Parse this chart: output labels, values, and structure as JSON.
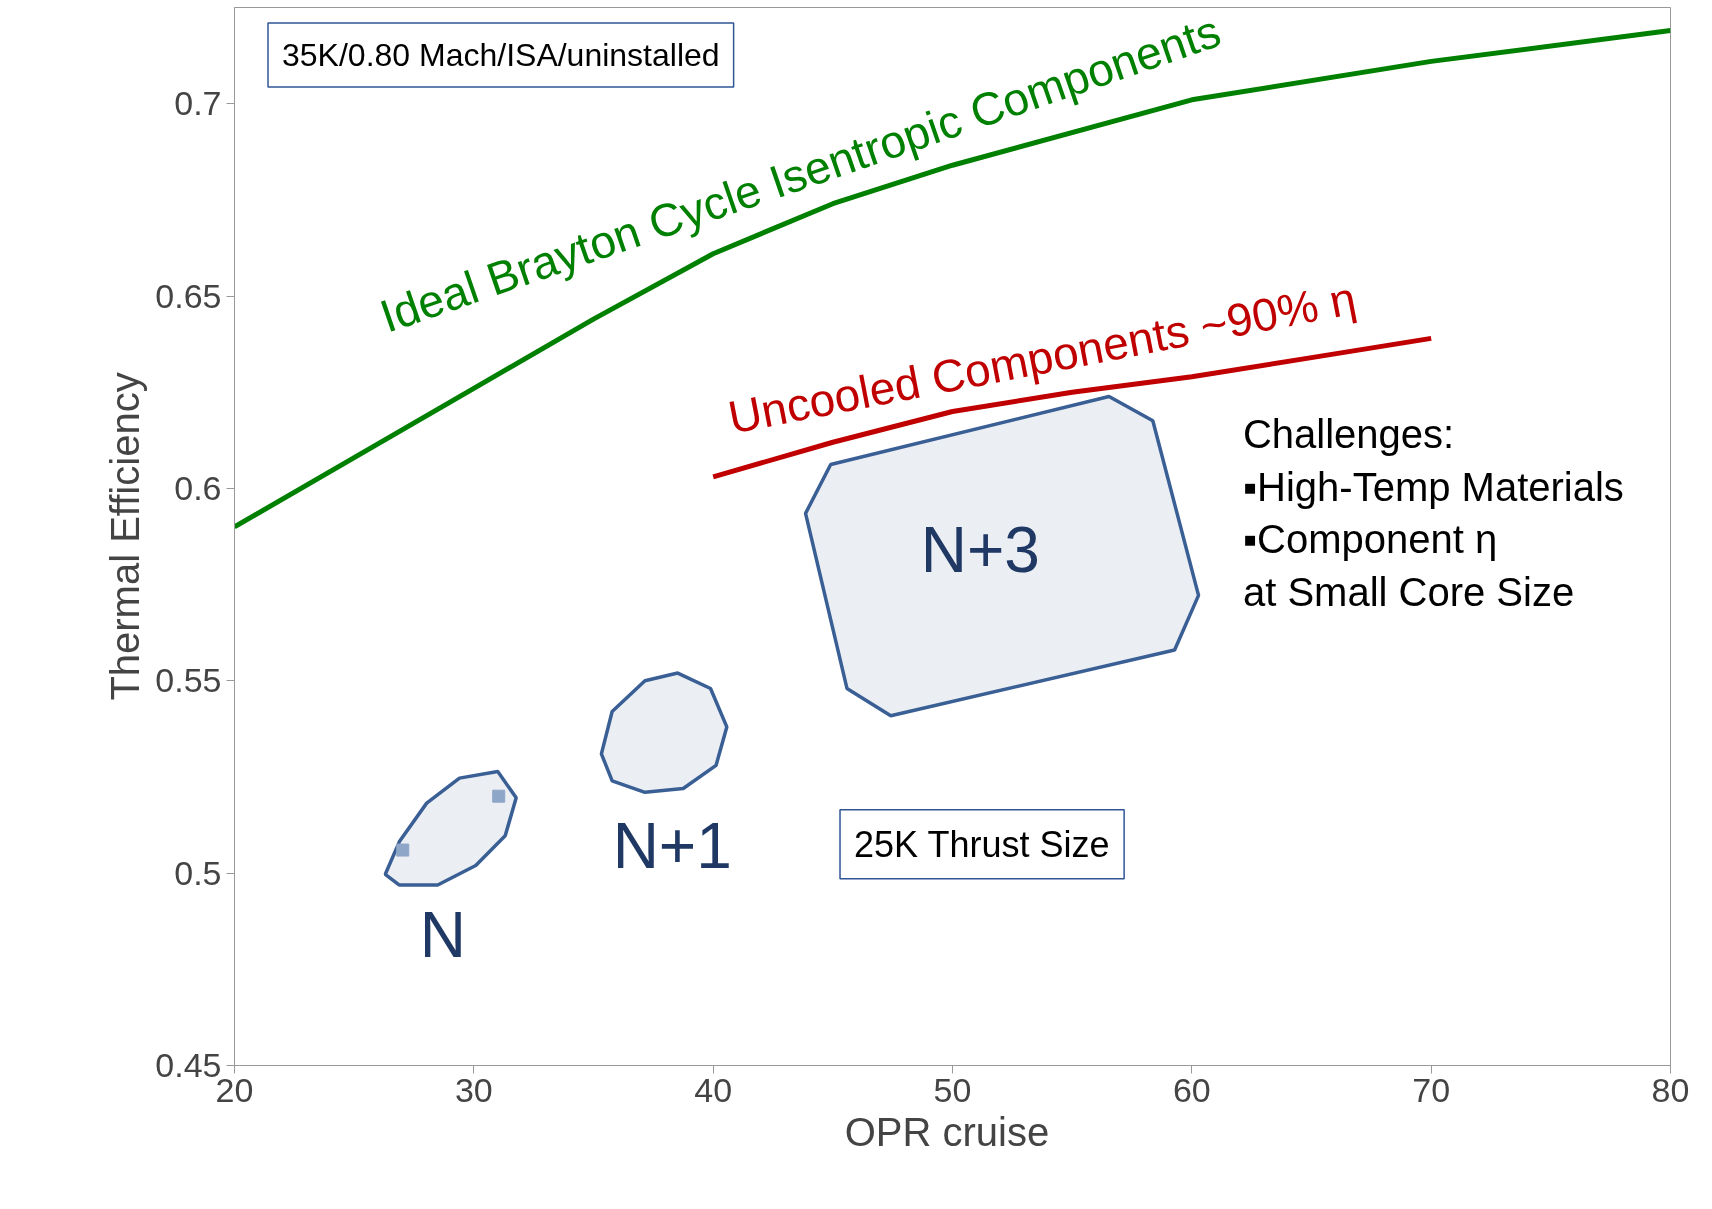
{
  "chart_data": {
    "type": "line",
    "xlabel": "OPR  cruise",
    "ylabel": "Thermal Efficiency",
    "xlim": [
      20,
      80
    ],
    "xticks": [
      20,
      30,
      40,
      50,
      60,
      70,
      80
    ],
    "ylim": [
      0.45,
      0.725
    ],
    "yticks": [
      0.45,
      0.5,
      0.55,
      0.6,
      0.65,
      0.7
    ],
    "grid": false,
    "marker": "none",
    "line_style": "solid",
    "series": [
      {
        "name": "Ideal Brayton Cycle     Isentropic Components",
        "color": "#008000",
        "x": [
          20,
          25,
          30,
          35,
          40,
          45,
          50,
          60,
          70,
          80
        ],
        "values": [
          0.59,
          0.608,
          0.626,
          0.644,
          0.661,
          0.674,
          0.684,
          0.701,
          0.711,
          0.719
        ]
      },
      {
        "name": "Uncooled     Components ~90% η",
        "color": "#c00000",
        "x": [
          40,
          45,
          50,
          55,
          60,
          65,
          70
        ],
        "values": [
          0.603,
          0.612,
          0.62,
          0.625,
          0.629,
          0.634,
          0.639
        ]
      },
      {
        "type": "area",
        "color": "#3a5f95",
        "x": [
          26.3,
          26.89,
          28.03,
          29.4,
          31.0,
          31.77,
          31.31,
          30.08,
          28.49,
          26.89
        ],
        "values": [
          0.4997,
          0.5082,
          0.5182,
          0.5247,
          0.5264,
          0.5196,
          0.5097,
          0.502,
          0.4969,
          0.4969
        ]
      },
      {
        "type": "area",
        "color": "#3a5f95",
        "x": [
          35.33,
          35.78,
          37.15,
          38.52,
          39.89,
          40.57,
          40.12,
          38.75,
          37.15,
          35.78
        ],
        "values": [
          0.531,
          0.542,
          0.55,
          0.552,
          0.548,
          0.538,
          0.528,
          0.522,
          0.521,
          0.524
        ]
      },
      {
        "type": "area",
        "color": "#3a5f95",
        "x": [
          43.86,
          44.91,
          56.54,
          58.37,
          60.28,
          59.28,
          47.42,
          45.59
        ],
        "values": [
          0.5935,
          0.6062,
          0.6239,
          0.6176,
          0.5722,
          0.558,
          0.5409,
          0.548
        ]
      },
      {
        "type": "scatter",
        "marker": "square",
        "color": "#8ea6c8",
        "x": [
          27.03,
          31.04
        ],
        "values": [
          0.506,
          0.52
        ]
      }
    ],
    "annotations": [
      "35K/0.80 Mach/ISA/uninstalled",
      "25K Thrust Size",
      "Challenges:\n▪High-Temp Materials\n▪Component η\n  at Small Core Size",
      "N",
      "N+1",
      "N+3"
    ]
  }
}
